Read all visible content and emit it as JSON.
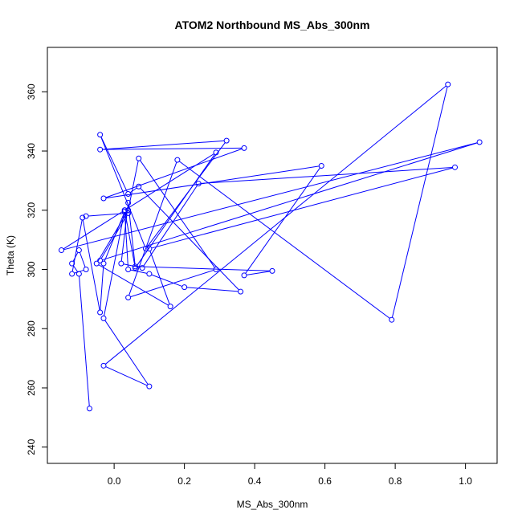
{
  "chart_data": {
    "type": "line",
    "title": "ATOM2 Northbound MS_Abs_300nm",
    "xlabel": "MS_Abs_300nm",
    "ylabel": "Theta (K)",
    "xlim": [
      -0.19,
      1.09
    ],
    "ylim": [
      234.5,
      375
    ],
    "x_ticks": [
      0.0,
      0.2,
      0.4,
      0.6,
      0.8,
      1.0
    ],
    "x_tick_labels": [
      "0.0",
      "0.2",
      "0.4",
      "0.6",
      "0.8",
      "1.0"
    ],
    "y_ticks": [
      240,
      260,
      280,
      300,
      320,
      340,
      360
    ],
    "y_tick_labels": [
      "240",
      "260",
      "280",
      "300",
      "320",
      "340",
      "360"
    ],
    "grid": false,
    "legend": "none",
    "series": [
      {
        "color": "#0000ff",
        "marker": "open-circle",
        "x": [
          -0.07,
          -0.1,
          -0.12,
          -0.1,
          -0.08,
          -0.12,
          -0.09,
          -0.04,
          -0.03,
          0.03,
          0.04,
          0.1,
          0.2,
          0.36,
          0.07,
          0.04,
          -0.04,
          0.09,
          0.32,
          -0.04,
          0.37,
          -0.03,
          0.59,
          0.37,
          0.45,
          0.06,
          0.04,
          0.02,
          0.08,
          0.24,
          0.97,
          0.1,
          0.16,
          -0.05,
          0.04,
          0.07,
          0.29,
          0.04,
          0.18,
          0.79,
          0.95,
          -0.03,
          0.1,
          -0.03,
          0.03,
          0.29,
          0.06,
          0.03,
          -0.15,
          1.04,
          -0.04,
          0.04,
          -0.08
        ],
        "y": [
          253.0,
          298.5,
          302.0,
          306.5,
          300.0,
          298.5,
          317.5,
          285.5,
          302.0,
          319.5,
          300.0,
          298.5,
          294.0,
          292.5,
          328.0,
          325.5,
          345.5,
          307.0,
          343.5,
          340.5,
          341.0,
          324.0,
          335.0,
          298.0,
          299.5,
          301.0,
          322.5,
          302.0,
          300.5,
          329.0,
          334.5,
          307.0,
          287.5,
          302.0,
          320.0,
          337.5,
          300.0,
          290.5,
          337.0,
          283.0,
          362.5,
          267.5,
          260.5,
          283.5,
          320.0,
          339.5,
          300.5,
          320.0,
          306.5,
          343.0,
          303.0,
          319.0,
          318.0
        ]
      }
    ]
  }
}
